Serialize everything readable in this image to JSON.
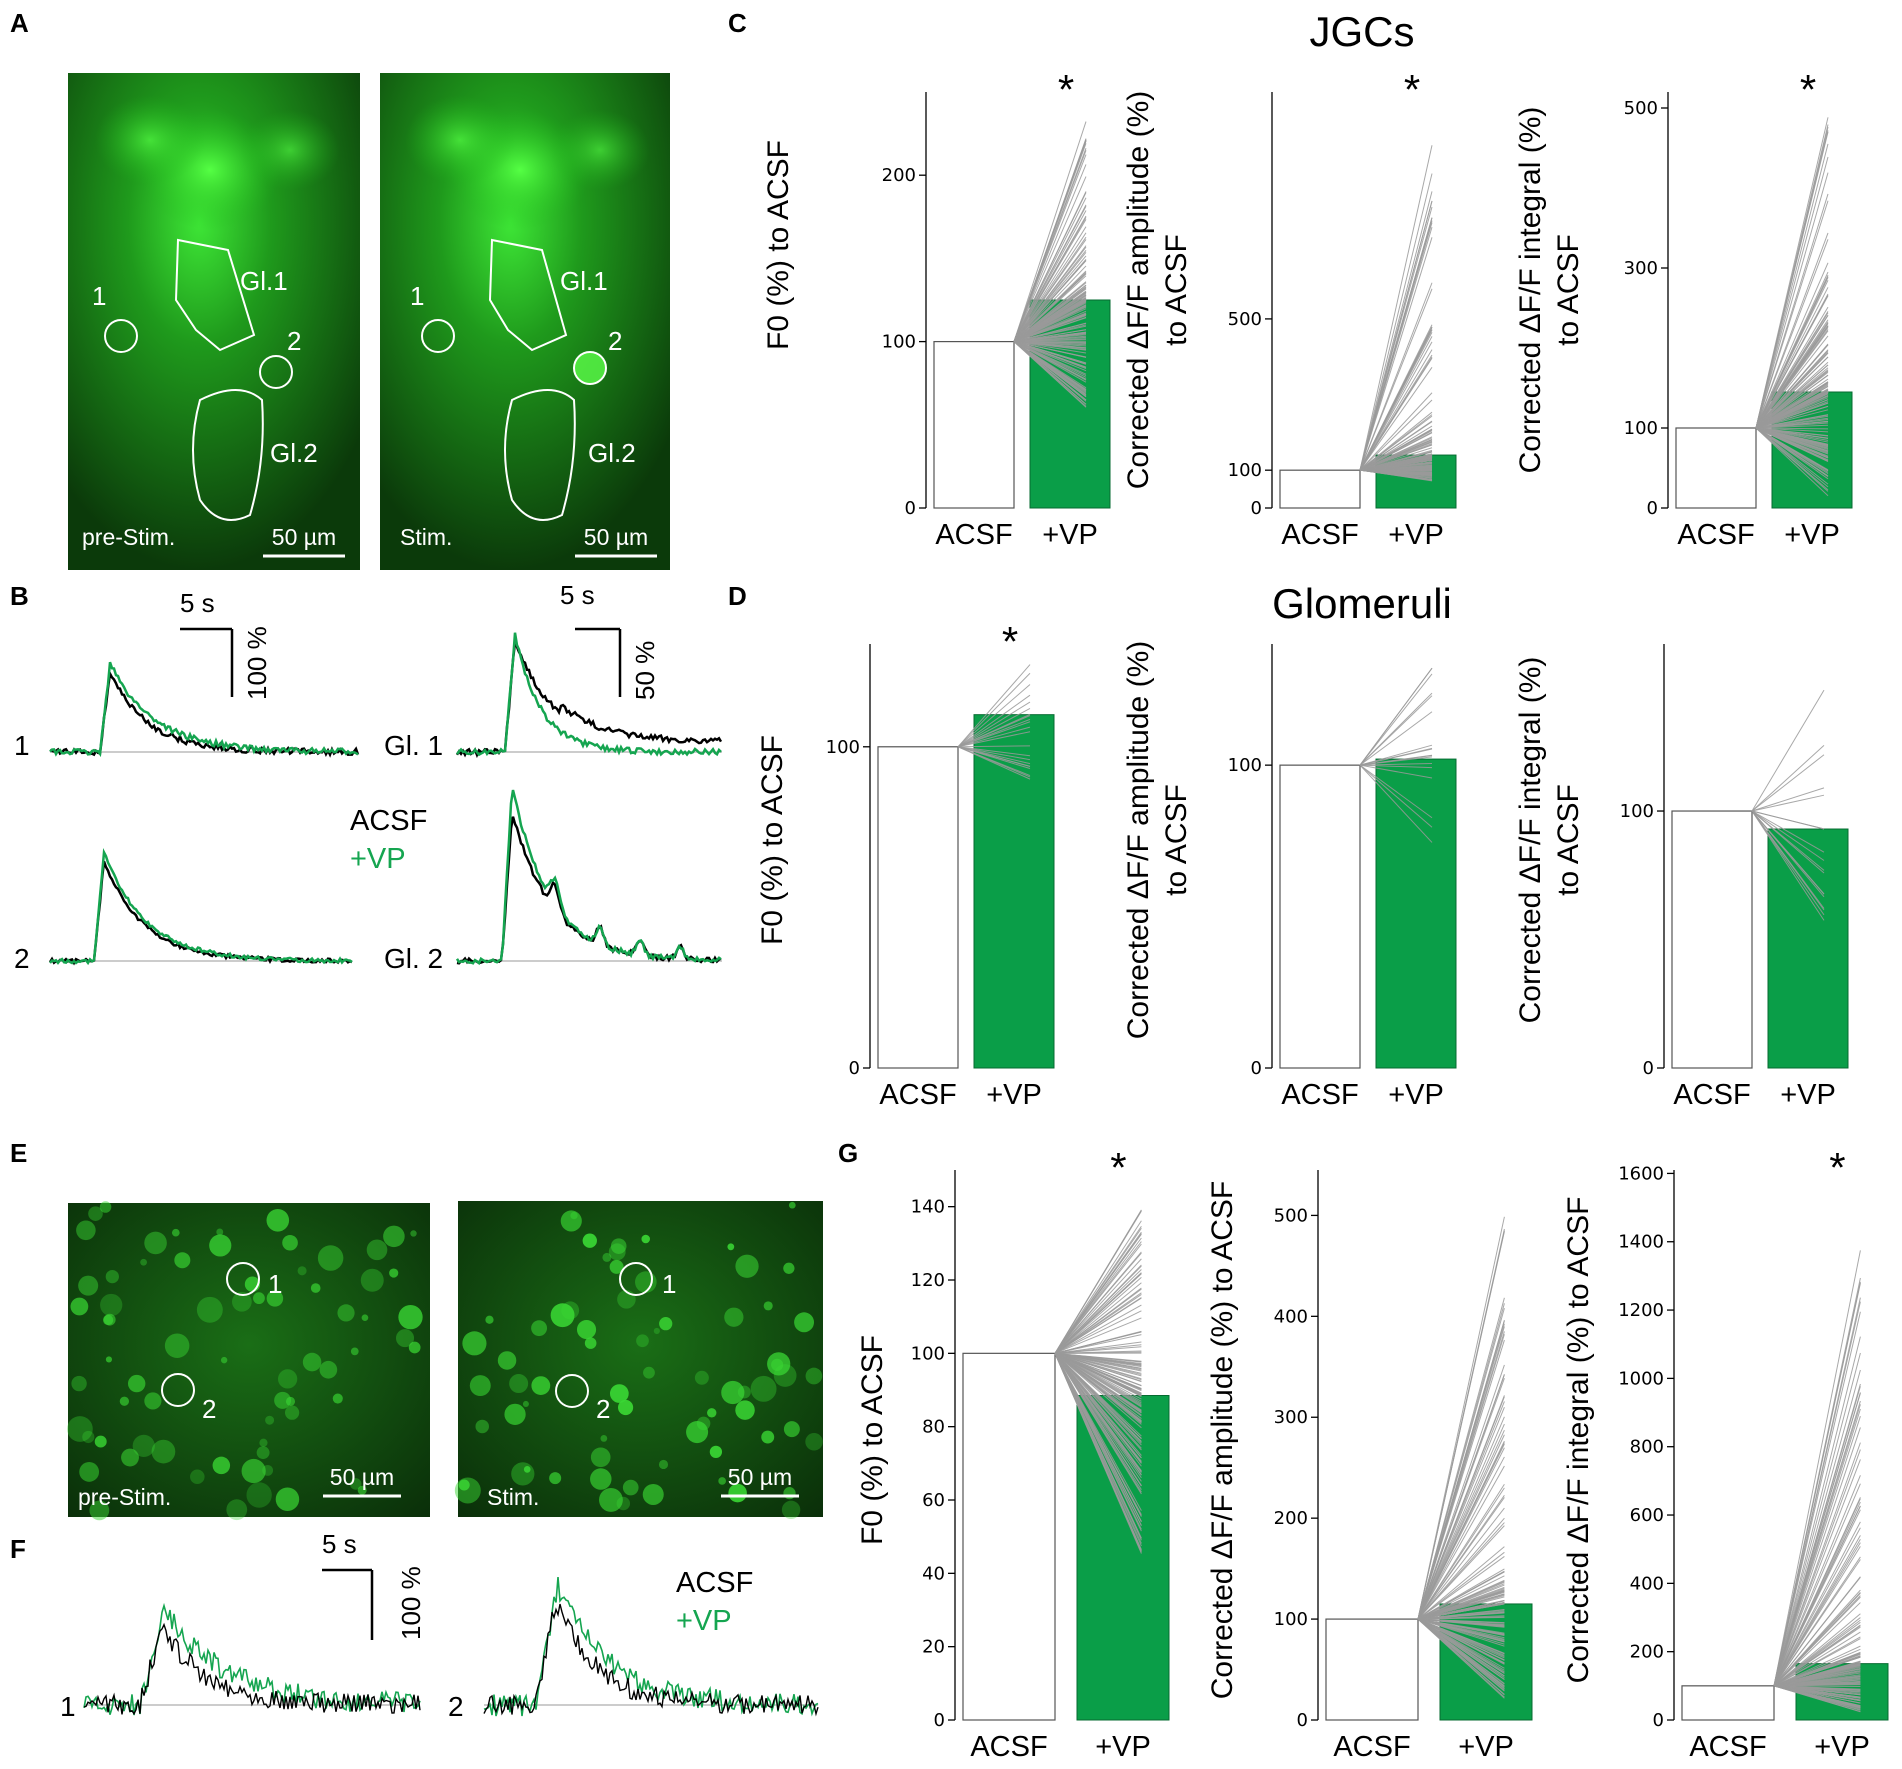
{
  "panel_labels": {
    "a": "A",
    "b": "B",
    "c": "C",
    "d": "D",
    "e": "E",
    "f": "F",
    "g": "G"
  },
  "titles": {
    "jgcs": "JGCs",
    "glomeruli": "Glomeruli"
  },
  "image_a": {
    "left": {
      "caption": "pre-Stim.",
      "scale": "50 µm",
      "roi1": "1",
      "roi2": "2",
      "gl1": "Gl.1",
      "gl2": "Gl.2"
    },
    "right": {
      "caption": "Stim.",
      "scale": "50 µm",
      "roi1": "1",
      "roi2": "2",
      "gl1": "Gl.1",
      "gl2": "Gl.2"
    }
  },
  "image_e": {
    "left": {
      "caption": "pre-Stim.",
      "scale": "50 µm",
      "roi1": "1",
      "roi2": "2"
    },
    "right": {
      "caption": "Stim.",
      "scale": "50 µm",
      "roi1": "1",
      "roi2": "2"
    }
  },
  "traces_b": {
    "scale_left": {
      "time": "5 s",
      "amp": "100 %"
    },
    "scale_right": {
      "time": "5 s",
      "amp": "50 %"
    },
    "labels": {
      "t1": "1",
      "t2": "2",
      "gl1": "Gl. 1",
      "gl2": "Gl. 2"
    },
    "legend": {
      "acsf": "ACSF",
      "vp": "+VP"
    }
  },
  "traces_f": {
    "scale": {
      "time": "5 s",
      "amp": "100 %"
    },
    "labels": {
      "t1": "1",
      "t2": "2"
    },
    "legend": {
      "acsf": "ACSF",
      "vp": "+VP"
    }
  },
  "colors": {
    "vp_green": "#0a9e48",
    "acsf_black": "#000000",
    "pairs_gray": "#9a9a9a",
    "image_green": "#2fd62a"
  },
  "chart_data": [
    {
      "id": "C1",
      "type": "bar",
      "panel": "C",
      "categories": [
        "ACSF",
        "+VP"
      ],
      "values": [
        100,
        125
      ],
      "ylabel": "F0 (%) to ACSF",
      "yticks": [
        0,
        100,
        200
      ],
      "ylim": [
        0,
        250
      ],
      "significance": "*"
    },
    {
      "id": "C2",
      "type": "bar",
      "panel": "C",
      "categories": [
        "ACSF",
        "+VP"
      ],
      "values": [
        100,
        140
      ],
      "ylabel": "Corrected ΔF/F amplitude (%) to ACSF",
      "yticks": [
        0,
        100,
        500
      ],
      "ylim": [
        0,
        1100
      ],
      "significance": "*"
    },
    {
      "id": "C3",
      "type": "bar",
      "panel": "C",
      "categories": [
        "ACSF",
        "+VP"
      ],
      "values": [
        100,
        145
      ],
      "ylabel": "Corrected ΔF/F integral (%) to ACSF",
      "yticks": [
        0,
        100,
        300,
        500
      ],
      "ylim": [
        0,
        520
      ],
      "significance": "*"
    },
    {
      "id": "D1",
      "type": "bar",
      "panel": "D",
      "categories": [
        "ACSF",
        "+VP"
      ],
      "values": [
        100,
        110
      ],
      "ylabel": "F0 (%) to ACSF",
      "yticks": [
        0,
        100
      ],
      "ylim": [
        0,
        132
      ],
      "significance": "*"
    },
    {
      "id": "D2",
      "type": "bar",
      "panel": "D",
      "categories": [
        "ACSF",
        "+VP"
      ],
      "values": [
        100,
        102
      ],
      "ylabel": "Corrected ΔF/F amplitude (%) to ACSF",
      "yticks": [
        0,
        100
      ],
      "ylim": [
        0,
        140
      ],
      "significance": ""
    },
    {
      "id": "D3",
      "type": "bar",
      "panel": "D",
      "categories": [
        "ACSF",
        "+VP"
      ],
      "values": [
        100,
        93
      ],
      "ylabel": "Corrected ΔF/F integral (%) to ACSF",
      "yticks": [
        0,
        100
      ],
      "ylim": [
        0,
        165
      ],
      "significance": ""
    },
    {
      "id": "G1",
      "type": "bar",
      "panel": "G",
      "categories": [
        "ACSF",
        "+VP"
      ],
      "values": [
        100,
        88.5
      ],
      "ylabel": "F0 (%) to ACSF",
      "yticks": [
        0,
        20,
        40,
        60,
        80,
        100,
        120,
        140
      ],
      "ylim": [
        0,
        150
      ],
      "significance": "*"
    },
    {
      "id": "G2",
      "type": "bar",
      "panel": "G",
      "categories": [
        "ACSF",
        "+VP"
      ],
      "values": [
        100,
        115
      ],
      "ylabel": "Corrected ΔF/F amplitude (%) to ACSF",
      "yticks": [
        0,
        100,
        200,
        300,
        400,
        500
      ],
      "ylim": [
        0,
        545
      ],
      "significance": ""
    },
    {
      "id": "G3",
      "type": "bar",
      "panel": "G",
      "categories": [
        "ACSF",
        "+VP"
      ],
      "values": [
        100,
        165
      ],
      "ylabel": "Corrected ΔF/F integral (%) to ACSF",
      "yticks": [
        0,
        200,
        400,
        600,
        800,
        1000,
        1200,
        1400,
        1600
      ],
      "ylim": [
        0,
        1610
      ],
      "significance": "*"
    }
  ]
}
